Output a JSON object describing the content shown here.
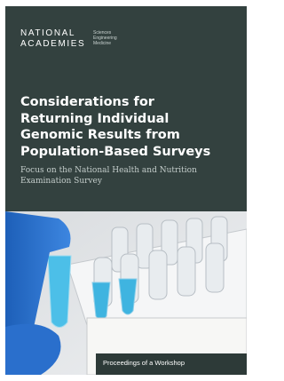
{
  "header": {
    "logo_lines": [
      "NATIONAL",
      "ACADEMIES"
    ],
    "logo_sub": [
      "Sciences",
      "Engineering",
      "Medicine"
    ]
  },
  "title_lines": [
    "Considerations for",
    "Returning Individual",
    "Genomic Results from",
    "Population-Based Surveys"
  ],
  "subtitle_lines": [
    "Focus on the National Health and Nutrition",
    "Examination Survey"
  ],
  "footer": "Proceedings of a Workshop"
}
